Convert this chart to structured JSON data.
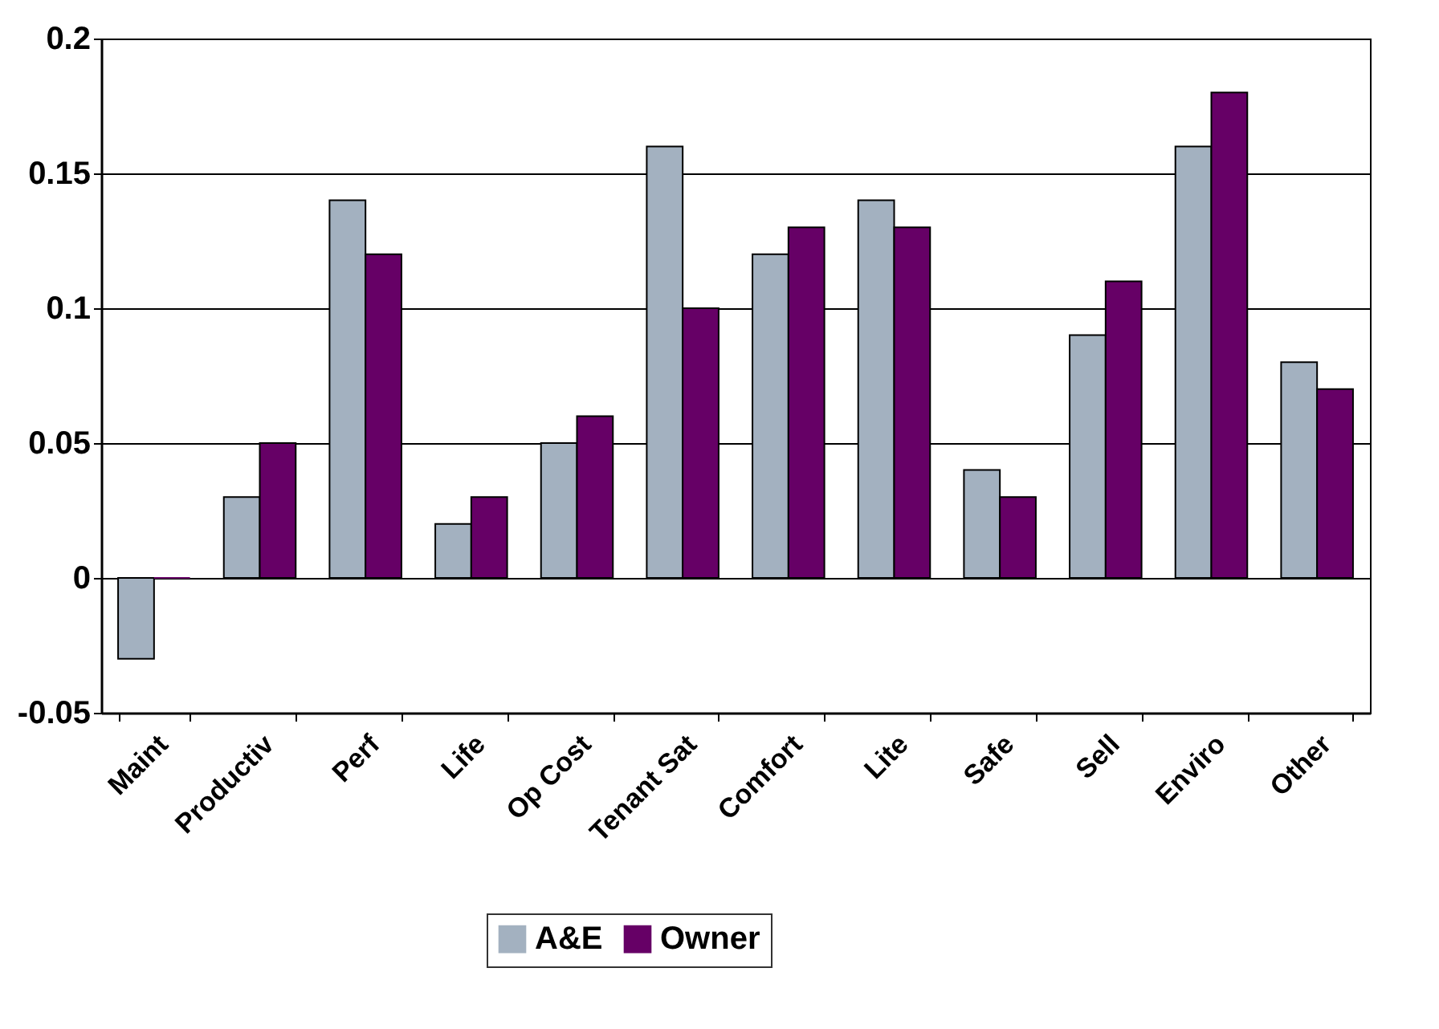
{
  "chart_data": {
    "type": "bar",
    "categories": [
      "Maint",
      "Productiv",
      "Perf",
      "Life",
      "Op Cost",
      "Tenant Sat",
      "Comfort",
      "Lite",
      "Safe",
      "Sell",
      "Enviro",
      "Other"
    ],
    "series": [
      {
        "name": "A&E",
        "color": "#a3b1c0",
        "values": [
          -0.03,
          0.03,
          0.14,
          0.02,
          0.05,
          0.16,
          0.12,
          0.14,
          0.04,
          0.09,
          0.16,
          0.08
        ]
      },
      {
        "name": "Owner",
        "color": "#660066",
        "values": [
          0,
          0.05,
          0.12,
          0.03,
          0.06,
          0.1,
          0.13,
          0.13,
          0.03,
          0.11,
          0.18,
          0.07
        ]
      }
    ],
    "ylim": [
      -0.05,
      0.2
    ],
    "yticks": [
      -0.05,
      0,
      0.05,
      0.1,
      0.15,
      0.2
    ],
    "grid": "y",
    "legend": "bottom"
  }
}
